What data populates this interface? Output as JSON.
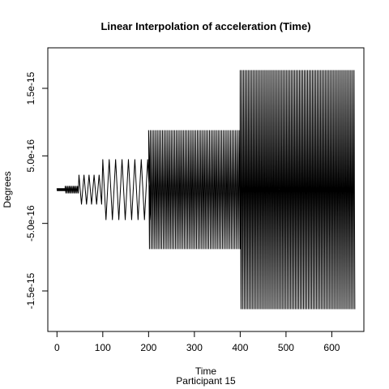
{
  "chart_data": {
    "type": "line",
    "title": "Linear Interpolation of acceleration (Time)",
    "xlabel": "Time",
    "ylabel": "Degrees",
    "subtitle": "Participant  15",
    "xlim": [
      -20,
      670
    ],
    "ylim": [
      -2.1e-15,
      2.1e-15
    ],
    "x_ticks": [
      0,
      100,
      200,
      300,
      400,
      500,
      600
    ],
    "x_tick_labels": [
      "0",
      "100",
      "200",
      "300",
      "400",
      "500",
      "600"
    ],
    "y_ticks": [
      -1.5e-15,
      -5e-16,
      5e-16,
      1.5e-15
    ],
    "y_tick_labels": [
      "-1.5e-15",
      "-5.0e-16",
      "5.0e-16",
      "1.5e-15"
    ],
    "series": [
      {
        "color": "#000000",
        "segments": [
          {
            "x_start": 0,
            "x_end": 18,
            "step": 1.3,
            "amplitude": 2e-17
          },
          {
            "x_start": 18,
            "x_end": 48,
            "step": 3,
            "amplitude": 5.5e-17
          },
          {
            "x_start": 48,
            "x_end": 100,
            "step": 11,
            "amplitude": 2.2e-16
          },
          {
            "x_start": 100,
            "x_end": 200,
            "step": 14,
            "amplitude": 4.5e-16
          },
          {
            "x_start": 200,
            "x_end": 400,
            "step": 3.8,
            "amplitude": 8.8e-16
          },
          {
            "x_start": 400,
            "x_end": 650,
            "step": 3.5,
            "amplitude": 1.77e-15
          }
        ]
      }
    ]
  }
}
